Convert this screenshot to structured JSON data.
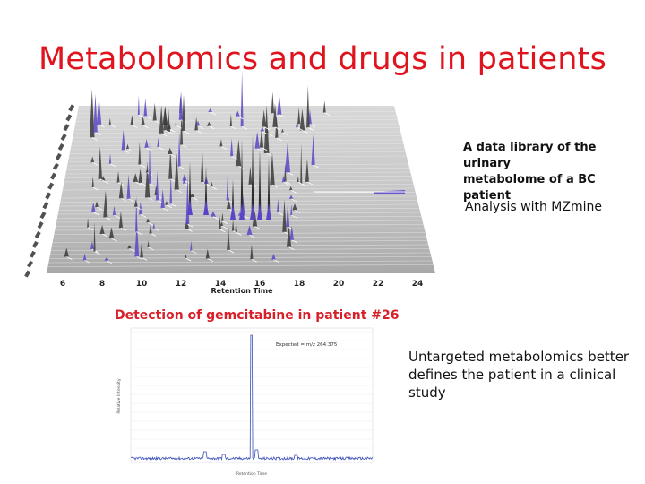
{
  "slide": {
    "title": "Metabolomics and drugs in patients",
    "caption_library": [
      "A data library of the urinary",
      "metabolome of a BC patient"
    ],
    "caption_mzmine": "Analysis with MZmine",
    "caption_untargeted": [
      "Untargeted metabolomics better",
      "defines the patient in a clinical",
      "study"
    ]
  },
  "chart_data": [
    {
      "type": "area",
      "xlabel": "Retention Time",
      "x_ticks": [
        "6",
        "8",
        "10",
        "12",
        "14",
        "16",
        "18",
        "20",
        "22",
        "24"
      ],
      "note": "3D stacked LC-MS chromatogram landscape"
    },
    {
      "type": "line",
      "title": "Detection of gemcitabine in patient #26",
      "annotation": "Expected = m/z 264.375",
      "xlabel": "Retention Time",
      "ylabel": "Relative Intensity",
      "peak_x": 15.0
    }
  ]
}
